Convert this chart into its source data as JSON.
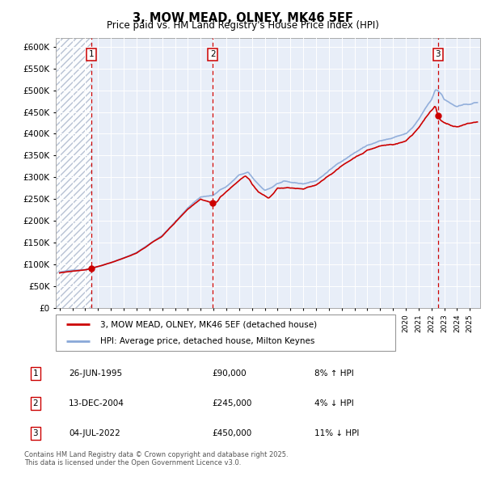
{
  "title": "3, MOW MEAD, OLNEY, MK46 5EF",
  "subtitle": "Price paid vs. HM Land Registry's House Price Index (HPI)",
  "ylim": [
    0,
    620000
  ],
  "yticks": [
    0,
    50000,
    100000,
    150000,
    200000,
    250000,
    300000,
    350000,
    400000,
    450000,
    500000,
    550000,
    600000
  ],
  "ytick_labels": [
    "£0",
    "£50K",
    "£100K",
    "£150K",
    "£200K",
    "£250K",
    "£300K",
    "£350K",
    "£400K",
    "£450K",
    "£500K",
    "£550K",
    "£600K"
  ],
  "xlim_start": 1992.7,
  "xlim_end": 2025.8,
  "transactions": [
    {
      "num": 1,
      "date": "26-JUN-1995",
      "price": 90000,
      "pct": "8% ↑ HPI",
      "year": 1995.49
    },
    {
      "num": 2,
      "date": "13-DEC-2004",
      "price": 245000,
      "pct": "4% ↓ HPI",
      "year": 2004.95
    },
    {
      "num": 3,
      "date": "04-JUL-2022",
      "price": 450000,
      "pct": "11% ↓ HPI",
      "year": 2022.51
    }
  ],
  "bg_color": "#e8eef8",
  "hpi_color": "#89a8d8",
  "price_color": "#cc0000",
  "hatch_color": "#c8d4e8",
  "legend_border_color": "#888888",
  "marker_box_color": "#cc0000",
  "marker_dot_color": "#cc0000",
  "grid_color": "#ffffff",
  "footnote": "Contains HM Land Registry data © Crown copyright and database right 2025.\nThis data is licensed under the Open Government Licence v3.0."
}
